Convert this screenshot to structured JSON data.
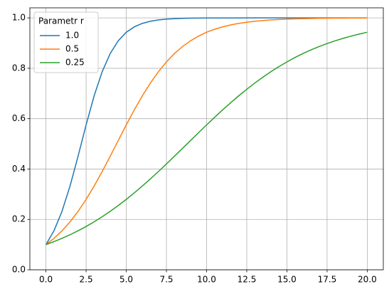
{
  "chart_data": {
    "type": "line",
    "legend_title": "Parametr r",
    "legend": "upper left",
    "grid": true,
    "x": [
      0,
      0.5,
      1,
      1.5,
      2,
      2.5,
      3,
      3.5,
      4,
      4.5,
      5,
      5.5,
      6,
      6.5,
      7,
      7.5,
      8,
      8.5,
      9,
      9.5,
      10,
      10.5,
      11,
      11.5,
      12,
      12.5,
      13,
      13.5,
      14,
      14.5,
      15,
      15.5,
      16,
      16.5,
      17,
      17.5,
      18,
      18.5,
      19,
      19.5,
      20
    ],
    "series": [
      {
        "name": "1.0",
        "color": "#1f77b4",
        "values": [
          0.1,
          0.1548,
          0.232,
          0.3325,
          0.4509,
          0.5751,
          0.6906,
          0.7863,
          0.8585,
          0.9091,
          0.943,
          0.9645,
          0.9782,
          0.9867,
          0.9919,
          0.995,
          0.997,
          0.9982,
          0.9989,
          0.9993,
          0.9996,
          0.9998,
          0.9998,
          0.9999,
          0.9999,
          1.0,
          1.0,
          1.0,
          1.0,
          1.0,
          1.0,
          1.0,
          1.0,
          1.0,
          1.0,
          1.0,
          1.0,
          1.0,
          1.0,
          1.0,
          1.0
        ]
      },
      {
        "name": "0.5",
        "color": "#ff7f0e",
        "values": [
          0.1,
          0.1249,
          0.1548,
          0.1904,
          0.232,
          0.2794,
          0.3325,
          0.39,
          0.4509,
          0.5132,
          0.5751,
          0.6349,
          0.6906,
          0.7413,
          0.7863,
          0.8253,
          0.8585,
          0.8862,
          0.9091,
          0.9278,
          0.943,
          0.9549,
          0.9645,
          0.9721,
          0.9782,
          0.9829,
          0.9867,
          0.9896,
          0.9919,
          0.9936,
          0.995,
          0.9961,
          0.997,
          0.9977,
          0.9982,
          0.9986,
          0.9989,
          0.9991,
          0.9993,
          0.9995,
          0.9996
        ]
      },
      {
        "name": "0.25",
        "color": "#2ca02c",
        "values": [
          0.1,
          0.1118,
          0.1249,
          0.1392,
          0.1548,
          0.1719,
          0.1904,
          0.2104,
          0.232,
          0.255,
          0.2794,
          0.3053,
          0.3325,
          0.3608,
          0.39,
          0.4201,
          0.4509,
          0.482,
          0.5132,
          0.5444,
          0.5751,
          0.6053,
          0.6349,
          0.6633,
          0.6906,
          0.7166,
          0.7413,
          0.7645,
          0.7863,
          0.8065,
          0.8253,
          0.8426,
          0.8585,
          0.873,
          0.8862,
          0.8982,
          0.9091,
          0.9189,
          0.9278,
          0.9357,
          0.943
        ]
      }
    ],
    "xlim": [
      -1,
      21
    ],
    "xticks": [
      {
        "value": 0,
        "label": "0.0"
      },
      2.5,
      {
        "value": 5,
        "label": "5.0"
      },
      7.5,
      {
        "value": 10,
        "label": "10.0"
      },
      12.5,
      {
        "value": 15,
        "label": "15.0"
      },
      17.5,
      {
        "value": 20,
        "label": "20.0"
      }
    ],
    "ylim": [
      0,
      1.04
    ],
    "yticks": [
      {
        "value": 0,
        "label": "0.0"
      },
      0.2,
      0.4,
      0.6,
      0.8,
      {
        "value": 1,
        "label": "1.0"
      }
    ]
  }
}
